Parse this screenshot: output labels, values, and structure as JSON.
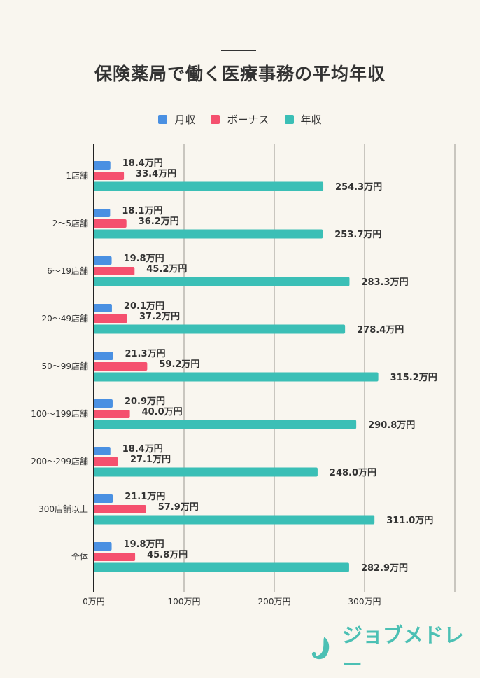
{
  "chart_data": {
    "type": "bar",
    "orientation": "horizontal",
    "title": "保険薬局で働く医療事務の平均年収",
    "categories": [
      "1店舗",
      "2〜5店舗",
      "6〜19店舗",
      "20〜49店舗",
      "50〜99店舗",
      "100〜199店舗",
      "200〜299店舗",
      "300店舗以上",
      "全体"
    ],
    "series": [
      {
        "name": "月収",
        "color": "#4a90e2",
        "values": [
          18.4,
          18.1,
          19.8,
          20.1,
          21.3,
          20.9,
          18.4,
          21.1,
          19.8
        ]
      },
      {
        "name": "ボーナス",
        "color": "#f5506e",
        "values": [
          33.4,
          36.2,
          45.2,
          37.2,
          59.2,
          40.0,
          27.1,
          57.9,
          45.8
        ]
      },
      {
        "name": "年収",
        "color": "#3bbfb6",
        "values": [
          254.3,
          253.7,
          283.3,
          278.4,
          315.2,
          290.8,
          248.0,
          311.0,
          282.9
        ]
      }
    ],
    "value_suffix": "万円",
    "xlim": [
      0,
      400
    ],
    "x_ticks": [
      0,
      100,
      200,
      300,
      400
    ],
    "x_tick_labels": [
      "0万円",
      "100万円",
      "200万円",
      "300万円",
      ""
    ],
    "grid": true,
    "legend_position": "top"
  },
  "brand": {
    "logo_text": "ジョブメドレー",
    "color": "#4cc0b4"
  }
}
